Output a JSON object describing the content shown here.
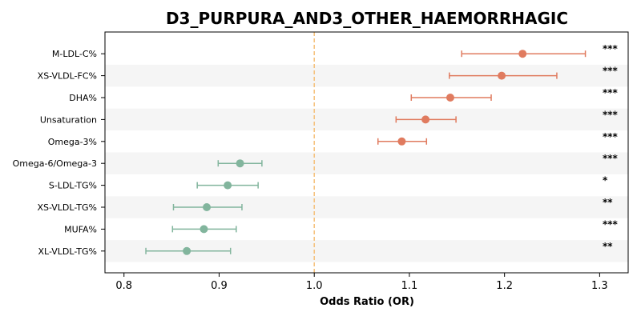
{
  "chart_data": {
    "type": "forest",
    "title": "D3_PURPURA_AND3_OTHER_HAEMORRHAGIC",
    "xlabel": "Odds Ratio (OR)",
    "xlim": [
      0.78,
      1.33
    ],
    "xticks": [
      0.8,
      0.9,
      1.0,
      1.1,
      1.2,
      1.3
    ],
    "xtick_labels": [
      "0.8",
      "0.9",
      "1.0",
      "1.1",
      "1.2",
      "1.3"
    ],
    "reference_line": 1.0,
    "colors": {
      "positive": "#E07B5F",
      "negative": "#82B59D",
      "reference": "#F5C07A",
      "stripe": "#F5F5F5"
    },
    "rows": [
      {
        "label": "M-LDL-C%",
        "or": 1.219,
        "lo": 1.155,
        "hi": 1.285,
        "sig": "***"
      },
      {
        "label": "XS-VLDL-FC%",
        "or": 1.197,
        "lo": 1.142,
        "hi": 1.255,
        "sig": "***"
      },
      {
        "label": "DHA%",
        "or": 1.143,
        "lo": 1.102,
        "hi": 1.186,
        "sig": "***"
      },
      {
        "label": "Unsaturation",
        "or": 1.117,
        "lo": 1.086,
        "hi": 1.149,
        "sig": "***"
      },
      {
        "label": "Omega-3%",
        "or": 1.092,
        "lo": 1.067,
        "hi": 1.118,
        "sig": "***"
      },
      {
        "label": "Omega-6/Omega-3",
        "or": 0.922,
        "lo": 0.899,
        "hi": 0.945,
        "sig": "***"
      },
      {
        "label": "S-LDL-TG%",
        "or": 0.909,
        "lo": 0.877,
        "hi": 0.941,
        "sig": "*"
      },
      {
        "label": "XS-VLDL-TG%",
        "or": 0.887,
        "lo": 0.852,
        "hi": 0.924,
        "sig": "**"
      },
      {
        "label": "MUFA%",
        "or": 0.884,
        "lo": 0.851,
        "hi": 0.918,
        "sig": "***"
      },
      {
        "label": "XL-VLDL-TG%",
        "or": 0.866,
        "lo": 0.823,
        "hi": 0.912,
        "sig": "**"
      }
    ]
  }
}
